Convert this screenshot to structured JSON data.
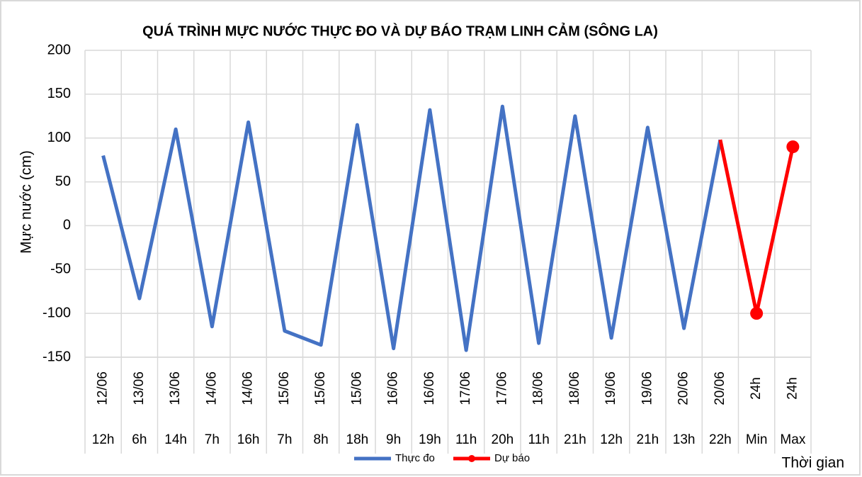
{
  "chart_data": {
    "type": "line",
    "title": "QUÁ TRÌNH MỰC NƯỚC THỰC ĐO VÀ DỰ BÁO TRẠM LINH CẢM (SÔNG LA)",
    "y_label": "Mực nước (cm)",
    "x_label": "Thời gian",
    "categories": [
      [
        "12/06",
        "12h"
      ],
      [
        "13/06",
        "6h"
      ],
      [
        "13/06",
        "14h"
      ],
      [
        "14/06",
        "7h"
      ],
      [
        "14/06",
        "16h"
      ],
      [
        "15/06",
        "7h"
      ],
      [
        "15/06",
        "8h"
      ],
      [
        "15/06",
        "18h"
      ],
      [
        "16/06",
        "9h"
      ],
      [
        "16/06",
        "19h"
      ],
      [
        "17/06",
        "11h"
      ],
      [
        "17/06",
        "20h"
      ],
      [
        "18/06",
        "11h"
      ],
      [
        "18/06",
        "21h"
      ],
      [
        "19/06",
        "12h"
      ],
      [
        "19/06",
        "21h"
      ],
      [
        "20/06",
        "13h"
      ],
      [
        "20/06",
        "22h"
      ],
      [
        "24h",
        "Min"
      ],
      [
        "24h",
        "Max"
      ]
    ],
    "series": [
      {
        "name": "Thực đo",
        "color": "#4472c4",
        "values": [
          80,
          -83,
          110,
          -115,
          118,
          -120,
          -136,
          115,
          -140,
          132,
          -142,
          136,
          -134,
          125,
          -128,
          112,
          -117,
          98,
          null,
          null
        ]
      },
      {
        "name": "Dự báo",
        "color": "#ff0000",
        "values": [
          null,
          null,
          null,
          null,
          null,
          null,
          null,
          null,
          null,
          null,
          null,
          null,
          null,
          null,
          null,
          null,
          null,
          98,
          -100,
          90
        ]
      }
    ],
    "ylim": [
      -150,
      200
    ],
    "yticks": [
      -150,
      -100,
      -50,
      0,
      50,
      100,
      150,
      200
    ],
    "grid": true
  }
}
